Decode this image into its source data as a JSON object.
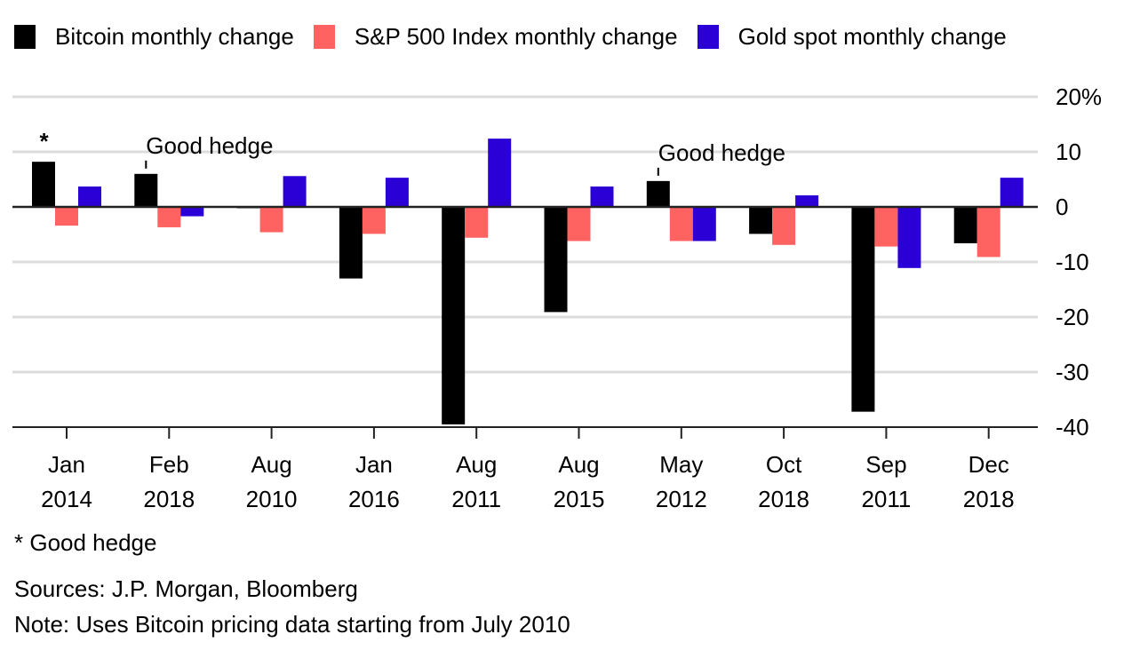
{
  "chart_data": {
    "type": "bar",
    "title": "",
    "xlabel": "",
    "ylabel": "",
    "categories": [
      [
        "Jan",
        "2014"
      ],
      [
        "Feb",
        "2018"
      ],
      [
        "Aug",
        "2010"
      ],
      [
        "Jan",
        "2016"
      ],
      [
        "Aug",
        "2011"
      ],
      [
        "Aug",
        "2015"
      ],
      [
        "May",
        "2012"
      ],
      [
        "Oct",
        "2018"
      ],
      [
        "Sep",
        "2011"
      ],
      [
        "Dec",
        "2018"
      ]
    ],
    "series": [
      {
        "name": "Bitcoin monthly change",
        "color": "#000000",
        "values": [
          8.2,
          6.0,
          0.0,
          -13.0,
          -39.5,
          -19.1,
          4.7,
          -4.9,
          -37.2,
          -6.6
        ]
      },
      {
        "name": "S&P 500 Index monthly change",
        "color": "#ff6361",
        "values": [
          -3.4,
          -3.7,
          -4.6,
          -4.9,
          -5.6,
          -6.2,
          -6.2,
          -6.9,
          -7.2,
          -9.1
        ]
      },
      {
        "name": "Gold spot monthly change",
        "color": "#2a00d6",
        "values": [
          3.7,
          -1.7,
          5.6,
          5.3,
          12.4,
          3.7,
          -6.2,
          2.1,
          -11.1,
          5.3
        ]
      }
    ],
    "ylim": [
      -40,
      20
    ],
    "yticks": [
      20,
      10,
      0,
      -10,
      -20,
      -30,
      -40
    ],
    "ytick_labels": [
      "20%",
      "10",
      "0",
      "-10",
      "-20",
      "-30",
      "-40"
    ],
    "grid": true,
    "y_axis_side": "right",
    "legend_position": "top",
    "annotations": [
      {
        "text": "*",
        "category_index": 0,
        "series_index": 0
      },
      {
        "text": "Good hedge",
        "category_index": 1,
        "series_index": 0
      },
      {
        "text": "Good hedge",
        "category_index": 6,
        "series_index": 0
      }
    ]
  },
  "footer": {
    "footnote": "* Good hedge",
    "sources": "Sources: J.P. Morgan, Bloomberg",
    "note": "Note: Uses Bitcoin pricing data starting from July 2010"
  }
}
